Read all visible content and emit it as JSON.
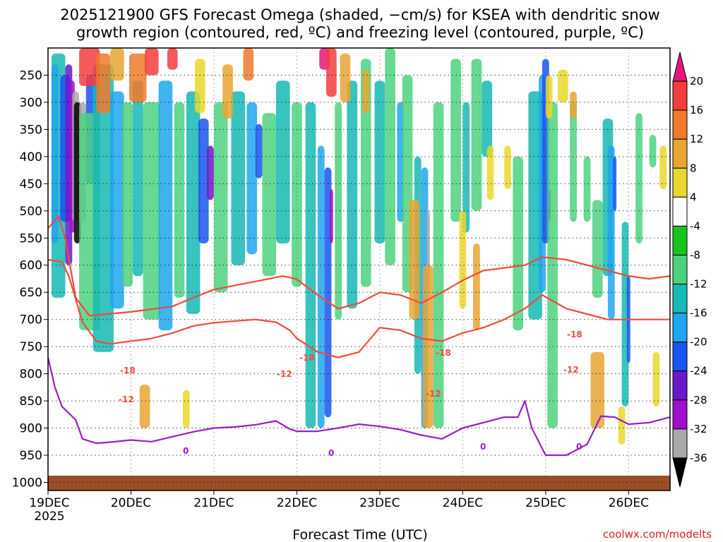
{
  "chart_data": {
    "type": "heatmap",
    "title_line1": "2025121900 GFS Forecast Omega (shaded, −cm/s) for KSEA with dendritic snow",
    "title_line2": "growth region (contoured, red, ºC) and freezing level (contoured, purple, ºC)",
    "xlabel": "Forecast Time (UTC)",
    "credit": "coolwx.com/modelts",
    "x_ticks": [
      "19DEC",
      "20DEC",
      "21DEC",
      "22DEC",
      "23DEC",
      "24DEC",
      "25DEC",
      "26DEC"
    ],
    "x_year": "2025",
    "x_range_hours": [
      0,
      180
    ],
    "y_ticks": [
      250,
      300,
      350,
      400,
      450,
      500,
      550,
      600,
      650,
      700,
      750,
      800,
      850,
      900,
      950,
      1000
    ],
    "y_range_hpa": [
      200,
      1015
    ],
    "colorbar": {
      "ticks": [
        20,
        16,
        12,
        8,
        4,
        -4,
        -8,
        -12,
        -16,
        -20,
        -24,
        -28,
        -32,
        -36
      ],
      "colors": [
        "#e8157a",
        "#f23d3d",
        "#f07a2a",
        "#e9a432",
        "#e9d82c",
        "#ffffff",
        "#16c41b",
        "#4cd27f",
        "#16b9b4",
        "#1ea6ef",
        "#1a55f0",
        "#6a19c9",
        "#a20fcc",
        "#a9a9a9",
        "#000000"
      ]
    },
    "contour_label_18": "-18",
    "contour_label_12": "-12",
    "contour_label_0": "0",
    "contours": {
      "dgz_minus18": {
        "color": "#f04a3c",
        "points": [
          [
            0,
            532
          ],
          [
            3,
            510
          ],
          [
            5,
            550
          ],
          [
            8,
            660
          ],
          [
            12,
            693
          ],
          [
            24,
            686
          ],
          [
            36,
            676
          ],
          [
            42,
            660
          ],
          [
            48,
            645
          ],
          [
            60,
            630
          ],
          [
            68,
            620
          ],
          [
            72,
            626
          ],
          [
            78,
            655
          ],
          [
            84,
            680
          ],
          [
            90,
            670
          ],
          [
            96,
            650
          ],
          [
            102,
            655
          ],
          [
            108,
            670
          ],
          [
            114,
            650
          ],
          [
            120,
            628
          ],
          [
            126,
            610
          ],
          [
            132,
            605
          ],
          [
            138,
            600
          ],
          [
            143,
            585
          ],
          [
            150,
            590
          ],
          [
            156,
            600
          ],
          [
            162,
            610
          ],
          [
            168,
            620
          ],
          [
            174,
            625
          ],
          [
            180,
            620
          ]
        ]
      },
      "dgz_minus12": {
        "color": "#f04a3c",
        "points": [
          [
            0,
            590
          ],
          [
            4,
            594
          ],
          [
            6,
            620
          ],
          [
            10,
            705
          ],
          [
            14,
            740
          ],
          [
            18,
            745
          ],
          [
            24,
            740
          ],
          [
            30,
            735
          ],
          [
            36,
            725
          ],
          [
            42,
            712
          ],
          [
            48,
            706
          ],
          [
            60,
            700
          ],
          [
            66,
            705
          ],
          [
            70,
            720
          ],
          [
            72,
            735
          ],
          [
            78,
            760
          ],
          [
            84,
            770
          ],
          [
            90,
            760
          ],
          [
            96,
            715
          ],
          [
            102,
            720
          ],
          [
            108,
            735
          ],
          [
            114,
            740
          ],
          [
            120,
            725
          ],
          [
            126,
            715
          ],
          [
            132,
            700
          ],
          [
            138,
            680
          ],
          [
            143,
            655
          ],
          [
            150,
            680
          ],
          [
            156,
            690
          ],
          [
            162,
            700
          ],
          [
            168,
            700
          ],
          [
            174,
            700
          ],
          [
            180,
            700
          ]
        ]
      },
      "frz_0": {
        "color": "#9a1ec6",
        "points": [
          [
            0,
            770
          ],
          [
            2,
            825
          ],
          [
            4,
            860
          ],
          [
            8,
            885
          ],
          [
            10,
            920
          ],
          [
            14,
            928
          ],
          [
            18,
            926
          ],
          [
            24,
            922
          ],
          [
            30,
            925
          ],
          [
            36,
            916
          ],
          [
            42,
            907
          ],
          [
            48,
            900
          ],
          [
            54,
            898
          ],
          [
            60,
            894
          ],
          [
            66,
            887
          ],
          [
            70,
            902
          ],
          [
            72,
            906
          ],
          [
            78,
            906
          ],
          [
            84,
            900
          ],
          [
            90,
            893
          ],
          [
            96,
            897
          ],
          [
            102,
            903
          ],
          [
            108,
            913
          ],
          [
            114,
            920
          ],
          [
            120,
            900
          ],
          [
            126,
            890
          ],
          [
            132,
            880
          ],
          [
            136,
            880
          ],
          [
            138,
            850
          ],
          [
            140,
            900
          ],
          [
            144,
            950
          ],
          [
            150,
            950
          ],
          [
            156,
            930
          ],
          [
            160,
            878
          ],
          [
            164,
            880
          ],
          [
            168,
            893
          ],
          [
            174,
            890
          ],
          [
            180,
            880
          ]
        ]
      }
    }
  }
}
